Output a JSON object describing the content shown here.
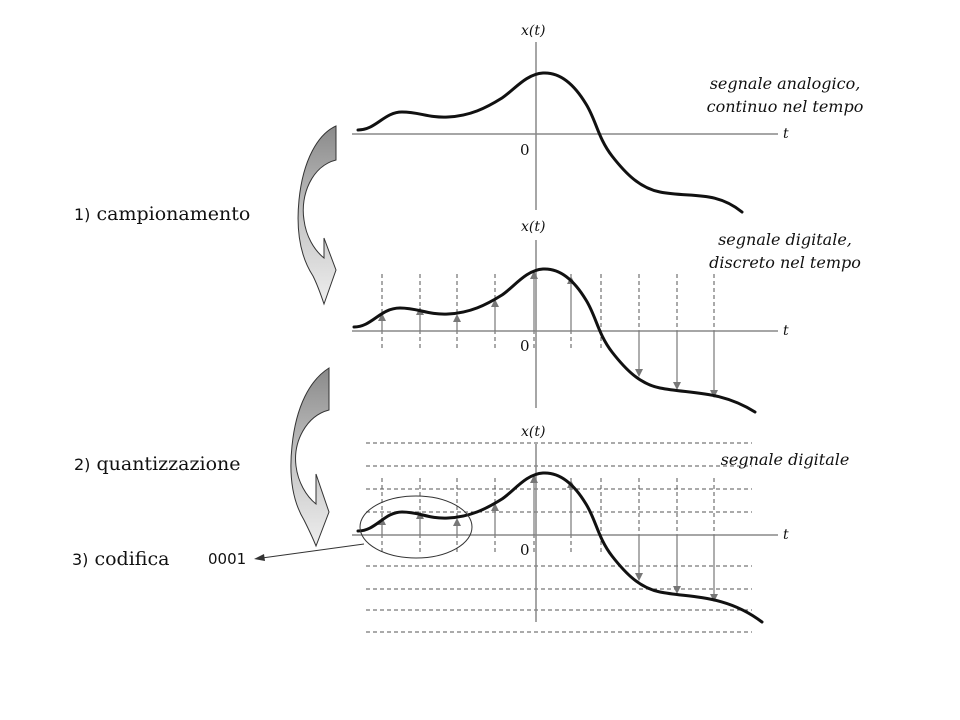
{
  "panels": [
    {
      "axis_label": "x(t)",
      "t_label": "t",
      "zero_label": "0",
      "caption_line1": "segnale analogico,",
      "caption_line2": "continuo nel tempo"
    },
    {
      "axis_label": "x(t)",
      "t_label": "t",
      "zero_label": "0",
      "caption_line1": "segnale digitale,",
      "caption_line2": "discreto nel tempo"
    },
    {
      "axis_label": "x(t)",
      "t_label": "t",
      "zero_label": "0",
      "caption_line1": "segnale digitale",
      "caption_line2": ""
    }
  ],
  "steps": [
    {
      "number": "1)",
      "label": "campionamento"
    },
    {
      "number": "2)",
      "label": "quantizzazione"
    },
    {
      "number": "3)",
      "label": "codifica"
    }
  ],
  "code_value": "0001",
  "colors": {
    "curve": "#111111",
    "axis": "#888888",
    "sample_arrow": "#777777",
    "dashed_line": "#555555",
    "arrow_dark": "#9a9a9a",
    "arrow_light": "#e2e2e2"
  },
  "icons": [
    "curved-arrow-down-icon",
    "curved-arrow-down-icon"
  ]
}
